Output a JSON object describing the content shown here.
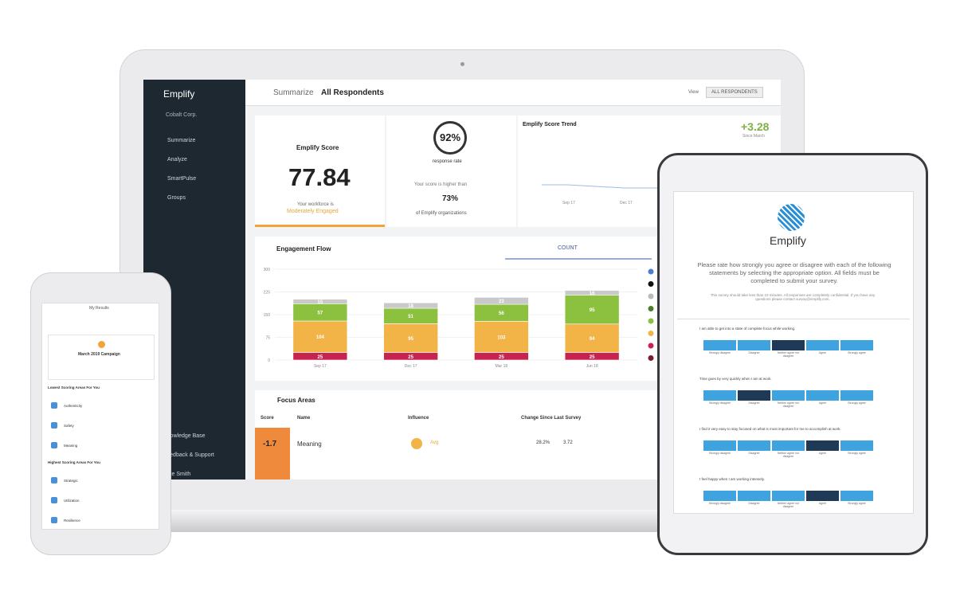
{
  "laptop": {
    "sidebar": {
      "brand": "Emplify",
      "org": "Cobalt Corp.",
      "nav": [
        "Summarize",
        "Analyze",
        "SmartPulse",
        "Groups"
      ],
      "footer": [
        "Knowledge Base",
        "Feedback & Support",
        "Kate Smith"
      ]
    },
    "header": {
      "prefix": "Summarize",
      "title": "All Respondents",
      "view_label": "View",
      "view_value": "ALL RESPONDENTS"
    },
    "score_card": {
      "title": "Emplify Score",
      "score": "77.84",
      "caption": "Your workforce is",
      "status": "Moderately Engaged"
    },
    "response_card": {
      "rate": "92%",
      "rate_label": "response rate",
      "caption": "Your score is higher than",
      "percentile": "73%",
      "percentile_label": "of Emplify organizations"
    },
    "trend_card": {
      "title": "Emplify Score Trend",
      "change": "+3.28",
      "change_label": "Since March",
      "x_labels": [
        "Sep 17",
        "Dec 17"
      ]
    },
    "engagement_flow": {
      "type": "bar",
      "title": "Engagement Flow",
      "tab": "COUNT",
      "categories": [
        "Sep 17",
        "Dec 17",
        "Mar 18",
        "Jun 18"
      ],
      "series": [
        {
          "color": "#c8234f",
          "values": [
            25,
            25,
            25,
            25
          ]
        },
        {
          "color": "#f2b347",
          "values": [
            104,
            95,
            103,
            94
          ]
        },
        {
          "color": "#8cc03f",
          "values": [
            57,
            51,
            56,
            95
          ]
        },
        {
          "color": "#c9c9c9",
          "values": [
            15,
            18,
            23,
            16
          ]
        }
      ],
      "ylim": [
        0,
        300
      ],
      "yticks": [
        0,
        75,
        150,
        225,
        300
      ]
    },
    "focus_areas": {
      "title": "Focus Areas",
      "columns": [
        "Score",
        "Name",
        "Influence",
        "Change Since Last Survey"
      ],
      "row": {
        "score": "-1.7",
        "name": "Meaning",
        "influence": "Avg",
        "change": "28.2%",
        "value": "3.72"
      }
    }
  },
  "phone": {
    "title": "My Results",
    "campaign": "March 2019 Campaign",
    "lowest_heading": "Lowest Scoring Areas For You",
    "lowest": [
      "Authenticity",
      "Safety",
      "Meaning"
    ],
    "highest_heading": "Highest Scoring Areas For You",
    "highest": [
      "Strategic",
      "Utilization",
      "Resilience"
    ]
  },
  "tablet": {
    "brand": "Emplify",
    "instructions": "Please rate how strongly you agree or disagree with each of the following statements by selecting the appropriate option. All fields must be completed to submit your survey.",
    "note": "This survey should take less than 10 minutes. All responses are completely confidential. If you have any questions please contact survey@emplify.com.",
    "scale": [
      "Strongly disagree",
      "Disagree",
      "Neither agree nor disagree",
      "Agree",
      "Strongly agree"
    ],
    "questions": [
      {
        "text": "I am able to get into a state of complete focus while working.",
        "selected": 2
      },
      {
        "text": "Time goes by very quickly when I am at work.",
        "selected": 1
      },
      {
        "text": "I find it very easy to stay focused on what is most important for me to accomplish at work.",
        "selected": 3
      },
      {
        "text": "I feel happy when I am working intensely.",
        "selected": 3
      }
    ]
  }
}
